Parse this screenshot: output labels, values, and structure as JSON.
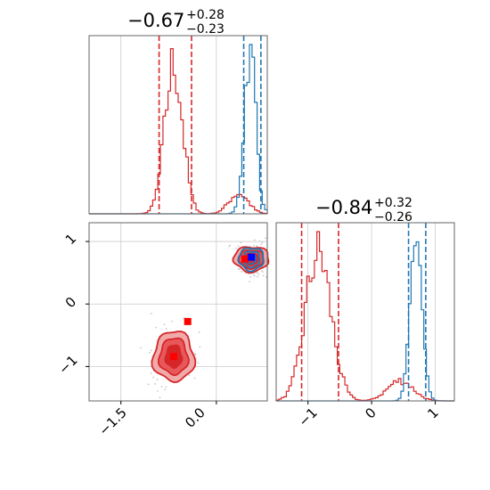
{
  "chart_data": [
    {
      "panel": "hist-param-1",
      "type": "step-histogram",
      "title": {
        "value": "−0.67",
        "upper": "+0.28",
        "lower": "−0.23"
      },
      "xlim": [
        -2.0,
        0.8
      ],
      "colors": {
        "red": "#d62728",
        "blue": "#1f77b4"
      },
      "series": [
        {
          "color": "red",
          "center": -0.67,
          "sigma": 0.14,
          "weight": 0.88,
          "tail": {
            "center": 0.35,
            "sigma": 0.15,
            "weight": 0.12
          },
          "quantiles": [
            -0.9,
            -0.67,
            -0.39
          ]
        },
        {
          "color": "blue",
          "center": 0.53,
          "sigma": 0.09,
          "weight": 1.0,
          "quantiles": [
            0.43,
            0.53,
            0.7
          ]
        }
      ]
    },
    {
      "panel": "hist-param-2",
      "type": "step-histogram",
      "title": {
        "value": "−0.84",
        "upper": "+0.32",
        "lower": "−0.26"
      },
      "xlim": [
        -1.5,
        1.3
      ],
      "xticks": [
        "−1",
        "0",
        "1"
      ],
      "series": [
        {
          "color": "red",
          "center": -0.84,
          "sigma": 0.2,
          "weight": 0.88,
          "tail": {
            "center": 0.45,
            "sigma": 0.2,
            "weight": 0.12
          },
          "quantiles": [
            -1.1,
            -0.84,
            -0.52
          ]
        },
        {
          "color": "blue",
          "center": 0.7,
          "sigma": 0.09,
          "weight": 1.0,
          "quantiles": [
            0.58,
            0.7,
            0.85
          ]
        }
      ]
    },
    {
      "panel": "corner-2d",
      "type": "scatter-contour",
      "xlim": [
        -2.0,
        0.8
      ],
      "ylim": [
        -1.55,
        1.3
      ],
      "xticks": [
        "−1.5",
        "0.0"
      ],
      "yticks": [
        "−1",
        "0",
        "1"
      ],
      "clusters": [
        {
          "color": "red",
          "x": -0.67,
          "y": -0.84,
          "sx": 0.14,
          "sy": 0.2,
          "marker": [
            -0.67,
            -0.84
          ]
        },
        {
          "color": "red",
          "x": 0.55,
          "y": 0.72,
          "sx": 0.12,
          "sy": 0.1,
          "marker": [
            0.45,
            0.72
          ]
        },
        {
          "color": "blue",
          "x": 0.55,
          "y": 0.72,
          "sx": 0.09,
          "sy": 0.09,
          "marker": [
            0.55,
            0.75
          ]
        }
      ],
      "extra_markers": [
        {
          "color": "red",
          "x": -0.45,
          "y": -0.28
        }
      ]
    }
  ]
}
